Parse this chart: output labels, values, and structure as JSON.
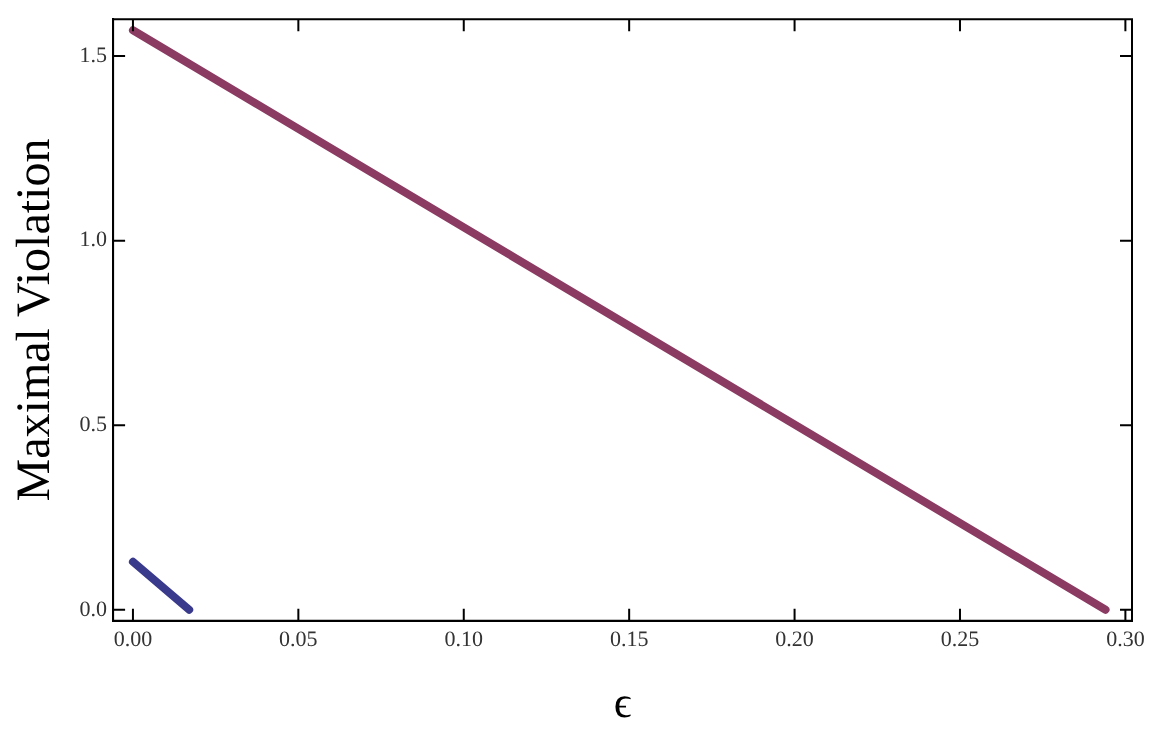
{
  "chart_data": {
    "type": "line",
    "xlabel": "ϵ",
    "ylabel": "Maximal Violation",
    "xlim": [
      -0.006,
      0.302
    ],
    "ylim": [
      -0.03,
      1.6
    ],
    "xticks": [
      {
        "value": 0,
        "label": "0.00"
      },
      0.05,
      {
        "value": 0.1,
        "label": "0.10"
      },
      0.15,
      {
        "value": 0.2,
        "label": "0.20"
      },
      0.25,
      {
        "value": 0.3,
        "label": "0.30"
      }
    ],
    "yticks": [
      {
        "value": 0,
        "label": "0.0"
      },
      0.5,
      {
        "value": 1,
        "label": "1.0"
      },
      1.5
    ],
    "grid": false,
    "legend": false,
    "marker": "none",
    "line_style": "solid",
    "series": [
      {
        "color": "#8b3a62",
        "x": [
          0,
          0.294
        ],
        "values": [
          1.57,
          0
        ]
      },
      {
        "color": "#3a3a8c",
        "x": [
          0,
          0.017
        ],
        "values": [
          0.13,
          0
        ]
      }
    ]
  }
}
